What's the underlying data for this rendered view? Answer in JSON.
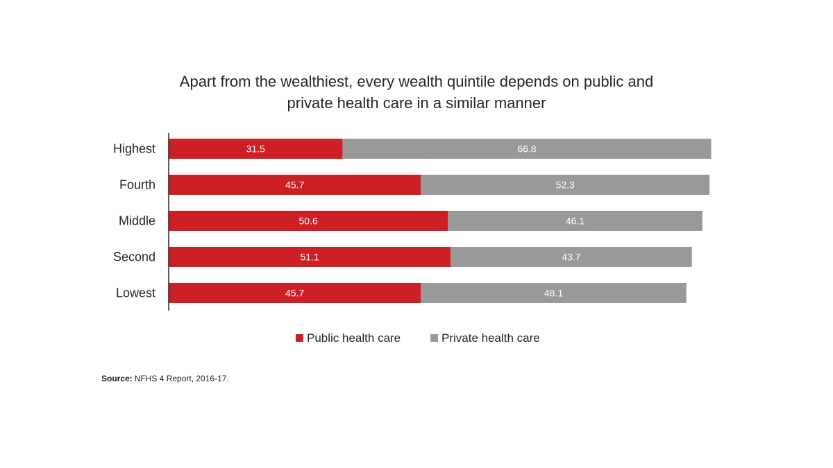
{
  "chart_data": {
    "type": "bar",
    "orientation": "horizontal",
    "stacked": true,
    "title_lines": [
      "Apart from the wealthiest, every wealth quintile depends on public and",
      "private health care in a similar manner"
    ],
    "categories": [
      "Highest",
      "Fourth",
      "Middle",
      "Second",
      "Lowest"
    ],
    "series": [
      {
        "name": "Public health care",
        "color": "#cc1f26",
        "values": [
          31.5,
          45.7,
          50.6,
          51.1,
          45.7
        ]
      },
      {
        "name": "Private health care",
        "color": "#999999",
        "values": [
          66.8,
          52.3,
          46.1,
          43.7,
          48.1
        ]
      }
    ],
    "xlim": [
      0,
      100
    ],
    "grid": false,
    "legend_position": "bottom-center"
  },
  "source": {
    "label": "Source:",
    "text": "NFHS 4 Report, 2016-17."
  }
}
